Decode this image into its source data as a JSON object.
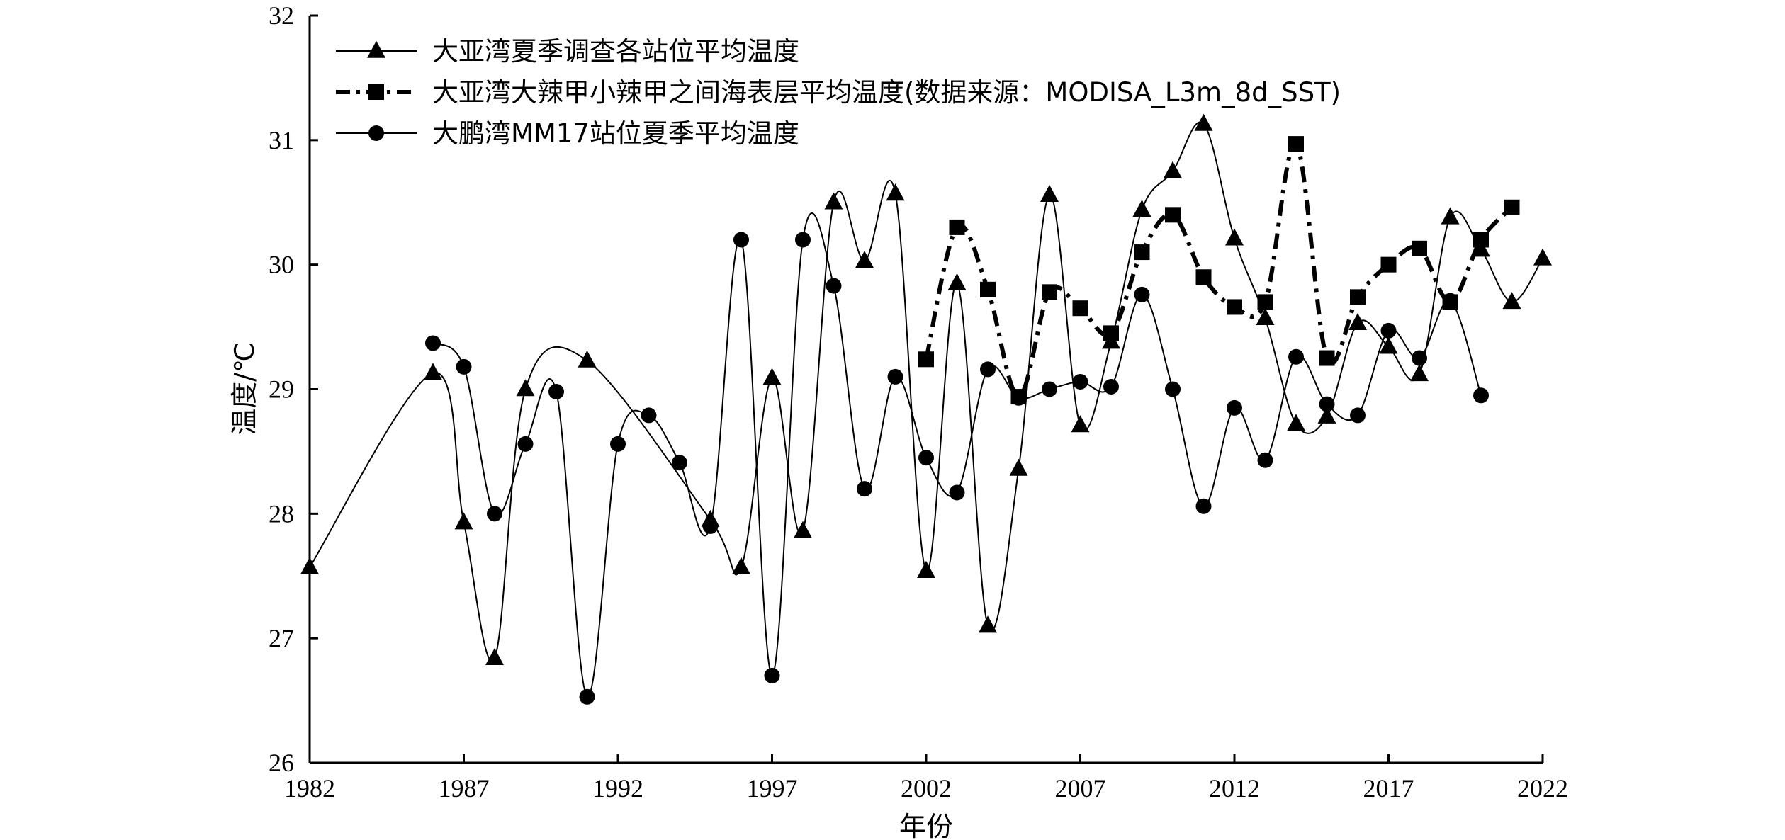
{
  "chart_data": {
    "type": "line",
    "title": "",
    "xlabel": "年份",
    "ylabel": "温度/℃",
    "xlim": [
      1982,
      2022
    ],
    "ylim": [
      26,
      32
    ],
    "x_ticks": [
      "1982",
      "1987",
      "1992",
      "1997",
      "2002",
      "2007",
      "2012",
      "2017",
      "2022"
    ],
    "y_ticks": [
      "26",
      "27",
      "28",
      "29",
      "30",
      "31",
      "32"
    ],
    "grid": false,
    "legend_position": "top-left",
    "series": [
      {
        "name": "大亚湾夏季调查各站位平均温度",
        "marker": "triangle",
        "line_style": "solid",
        "color": "#000000",
        "x": [
          1982,
          1986,
          1987,
          1988,
          1989,
          1991,
          1995,
          1996,
          1997,
          1998,
          1999,
          2000,
          2001,
          2002,
          2003,
          2004,
          2005,
          2006,
          2007,
          2008,
          2009,
          2010,
          2011,
          2012,
          2013,
          2014,
          2015,
          2016,
          2017,
          2018,
          2019,
          2020,
          2021,
          2022
        ],
        "y": [
          27.57,
          29.13,
          27.93,
          26.84,
          29.0,
          29.23,
          27.95,
          27.57,
          29.09,
          27.86,
          30.5,
          30.03,
          30.57,
          27.54,
          29.85,
          27.1,
          28.36,
          30.56,
          28.71,
          29.38,
          30.44,
          30.75,
          31.13,
          30.21,
          29.57,
          28.72,
          28.78,
          29.53,
          29.34,
          29.12,
          30.38,
          30.12,
          29.7,
          30.05
        ]
      },
      {
        "name": "大亚湾大辣甲小辣甲之间海表层平均温度(数据来源：MODISA_L3m_8d_SST)",
        "marker": "square",
        "line_style": "dash-dot",
        "color": "#000000",
        "x": [
          2002,
          2003,
          2004,
          2005,
          2006,
          2007,
          2008,
          2009,
          2010,
          2011,
          2012,
          2013,
          2014,
          2015,
          2016,
          2017,
          2018,
          2019,
          2020,
          2021
        ],
        "y": [
          29.24,
          30.3,
          29.8,
          28.94,
          29.78,
          29.65,
          29.45,
          30.1,
          30.4,
          29.9,
          29.66,
          29.7,
          30.97,
          29.25,
          29.74,
          30.0,
          30.13,
          29.7,
          30.2,
          30.46
        ]
      },
      {
        "name": "大鹏湾MM17站位夏季平均温度",
        "marker": "circle",
        "line_style": "solid",
        "color": "#000000",
        "x": [
          1986,
          1987,
          1988,
          1989,
          1990,
          1991,
          1992,
          1993,
          1994,
          1995,
          1996,
          1997,
          1998,
          1999,
          2000,
          2001,
          2002,
          2003,
          2004,
          2005,
          2006,
          2007,
          2008,
          2009,
          2010,
          2011,
          2012,
          2013,
          2014,
          2015,
          2016,
          2017,
          2018,
          2019,
          2020
        ],
        "y": [
          29.37,
          29.18,
          28.0,
          28.56,
          28.98,
          26.53,
          28.56,
          28.79,
          28.41,
          27.9,
          30.2,
          26.7,
          30.2,
          29.83,
          28.2,
          29.1,
          28.45,
          28.17,
          29.16,
          28.93,
          29.0,
          29.06,
          29.02,
          29.76,
          29.0,
          28.06,
          28.85,
          28.43,
          29.26,
          28.88,
          28.79,
          29.47,
          29.25,
          29.71,
          28.95
        ]
      }
    ]
  }
}
